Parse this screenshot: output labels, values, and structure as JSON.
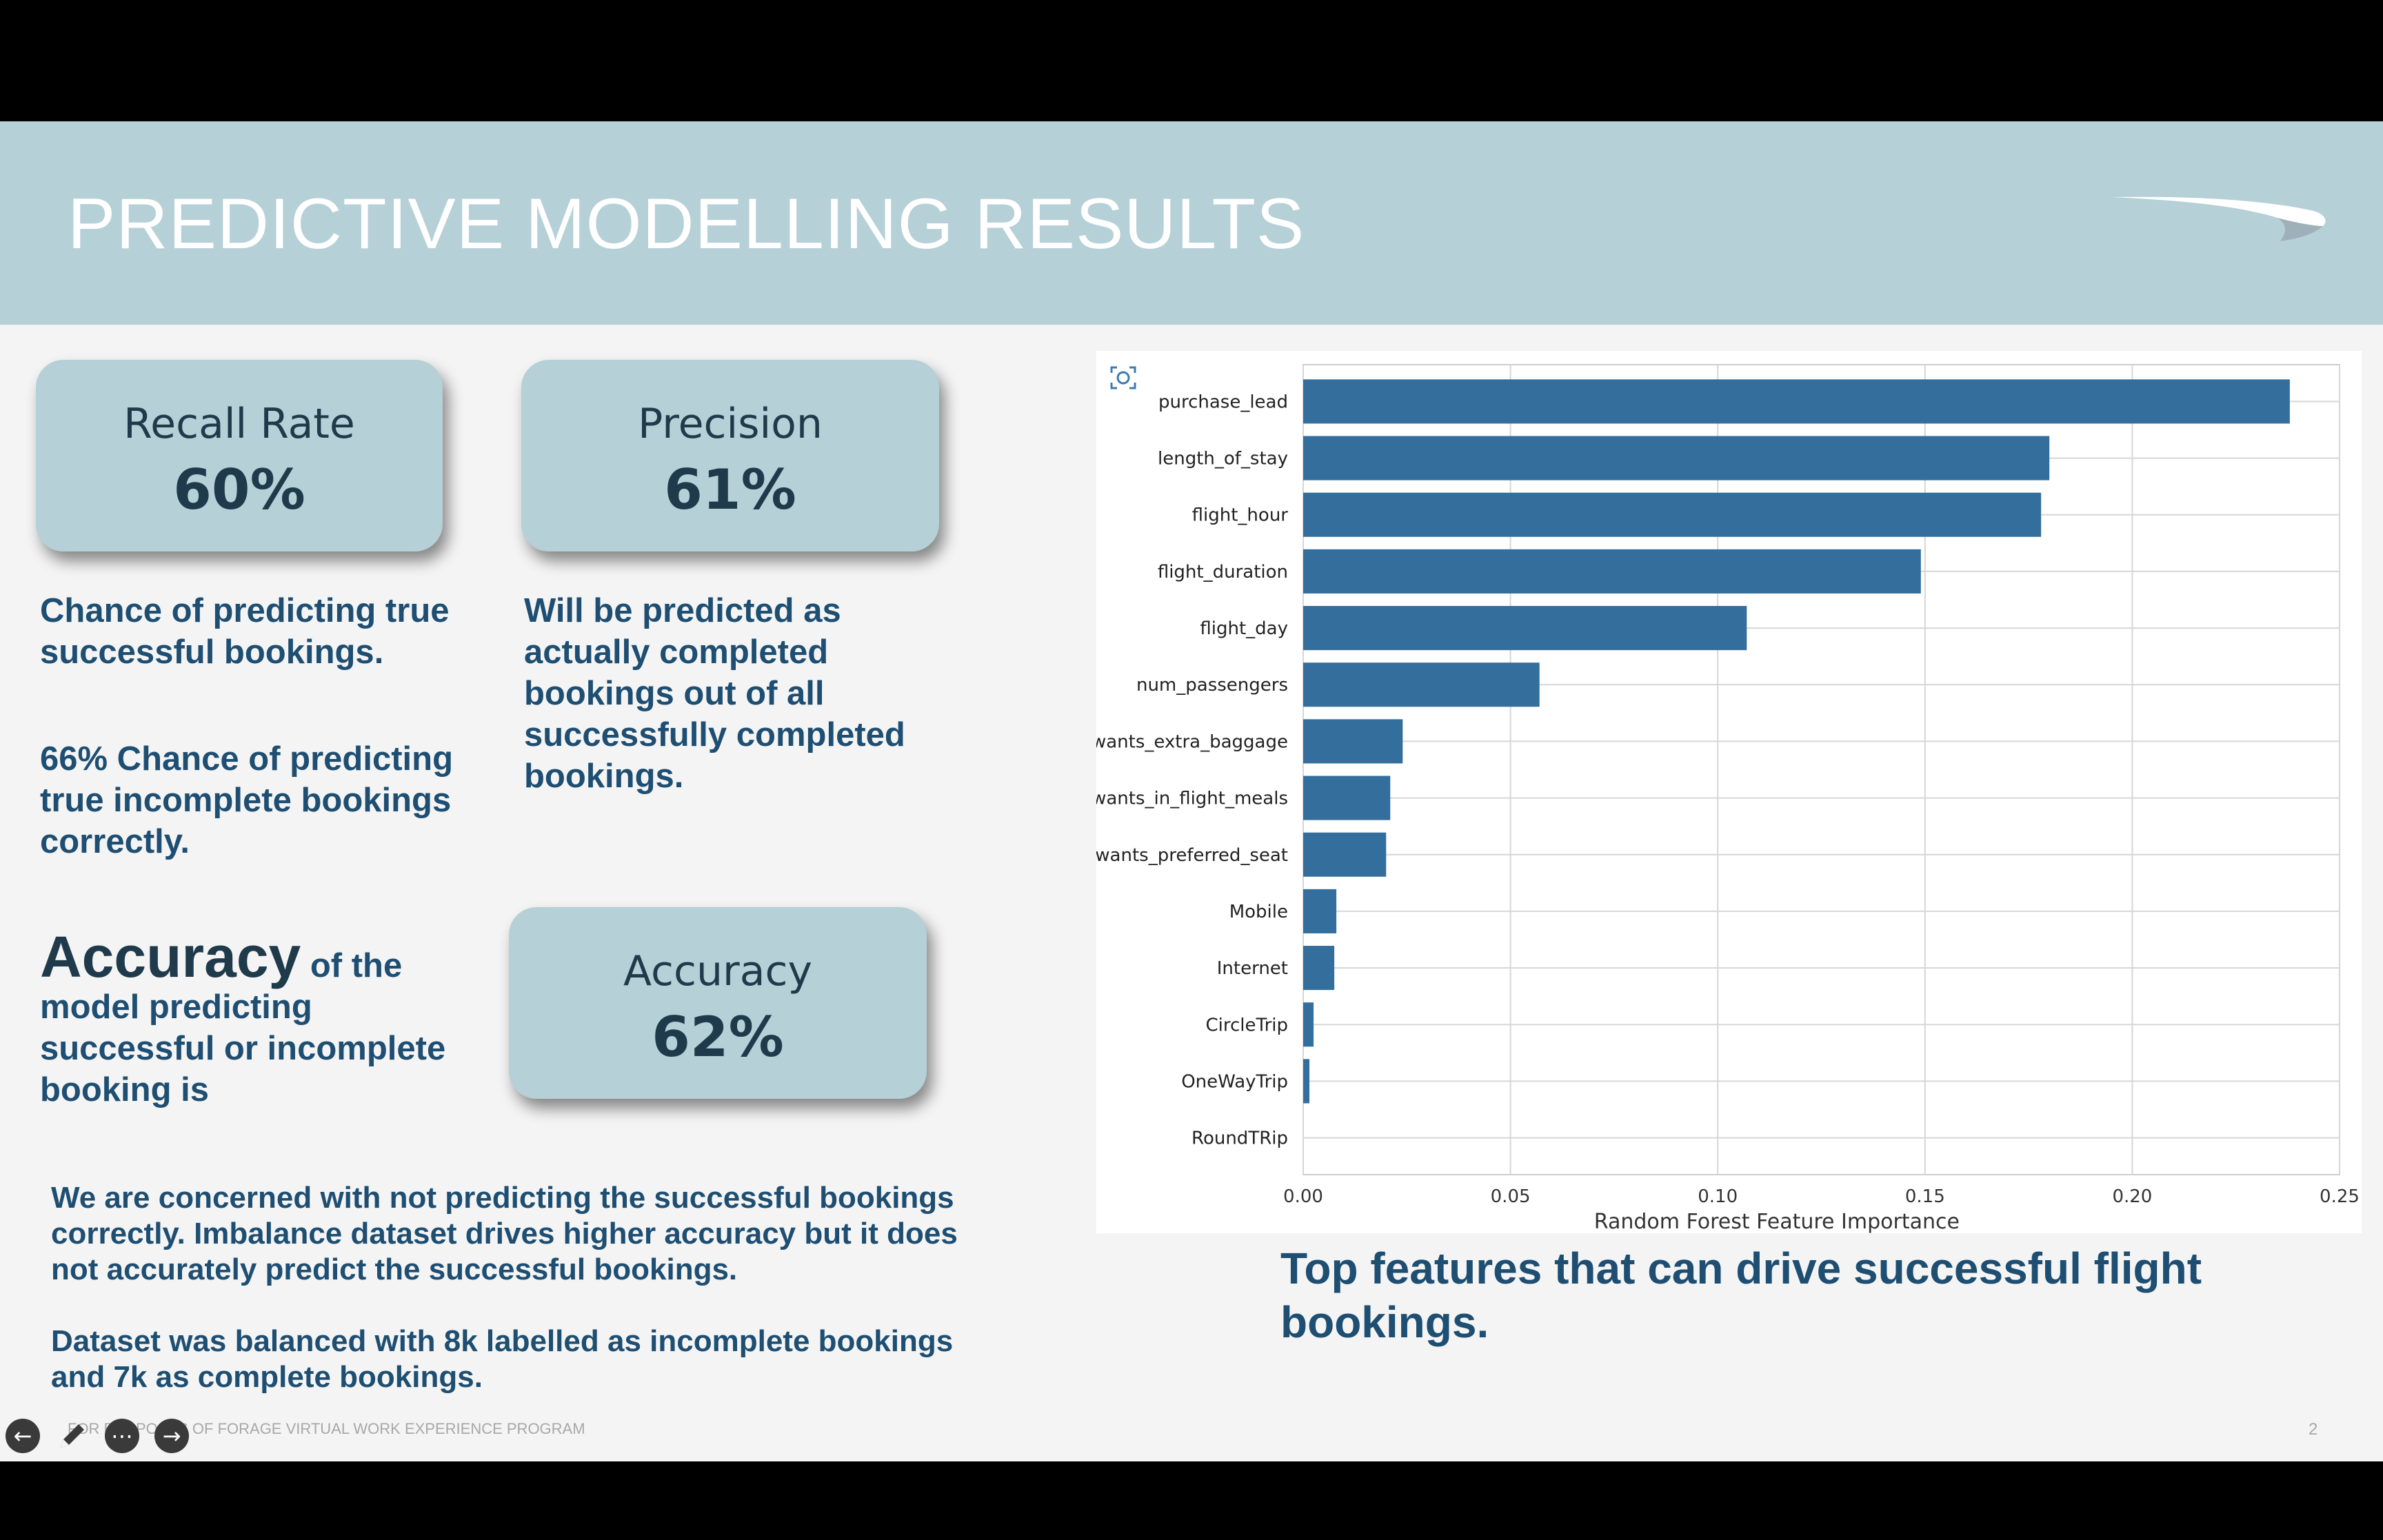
{
  "slide": {
    "title": "PREDICTIVE MODELLING RESULTS",
    "logo_icon": "speedmarque-logo",
    "footer": "FOR PURPOSES OF FORAGE VIRTUAL WORK EXPERIENCE PROGRAM",
    "page_number": "2"
  },
  "metrics": {
    "recall": {
      "label": "Recall Rate",
      "value": "60%"
    },
    "precision": {
      "label": "Precision",
      "value": "61%"
    },
    "accuracy": {
      "label": "Accuracy",
      "value": "62%"
    }
  },
  "text": {
    "recall_desc": "Chance of predicting true successful bookings.",
    "recall_desc2": "66% Chance of predicting true incomplete bookings correctly.",
    "precision_desc": "Will be predicted as actually completed bookings out of all successfully completed bookings.",
    "accuracy_big": "Accuracy",
    "accuracy_rest": "of the model predicting successful or incomplete booking is",
    "note1": "We are concerned with not predicting the successful bookings correctly. Imbalance dataset drives higher accuracy but it does not accurately predict the successful bookings.",
    "note2": "Dataset was balanced with 8k labelled as incomplete bookings and 7k as complete bookings.",
    "top_features": "Top features that can drive successful flight bookings."
  },
  "chart_data": {
    "type": "bar",
    "orientation": "horizontal",
    "categories": [
      "purchase_lead",
      "length_of_stay",
      "flight_hour",
      "flight_duration",
      "flight_day",
      "num_passengers",
      "wants_extra_baggage",
      "wants_in_flight_meals",
      "wants_preferred_seat",
      "Mobile",
      "Internet",
      "CircleTrip",
      "OneWayTrip",
      "RoundTRip"
    ],
    "values": [
      0.238,
      0.18,
      0.178,
      0.149,
      0.107,
      0.057,
      0.024,
      0.021,
      0.02,
      0.008,
      0.0075,
      0.0025,
      0.0015,
      0.0
    ],
    "xlabel": "Random Forest Feature Importance",
    "ylabel": "",
    "xlim": [
      0,
      0.25
    ],
    "xticks": [
      "0.00",
      "0.05",
      "0.10",
      "0.15",
      "0.20",
      "0.25"
    ],
    "grid": true,
    "bar_color": "#336e9c"
  },
  "controls": {
    "prev_icon": "arrow-left-icon",
    "pen_icon": "pen-icon",
    "more_icon": "more-icon",
    "next_icon": "arrow-right-icon"
  }
}
